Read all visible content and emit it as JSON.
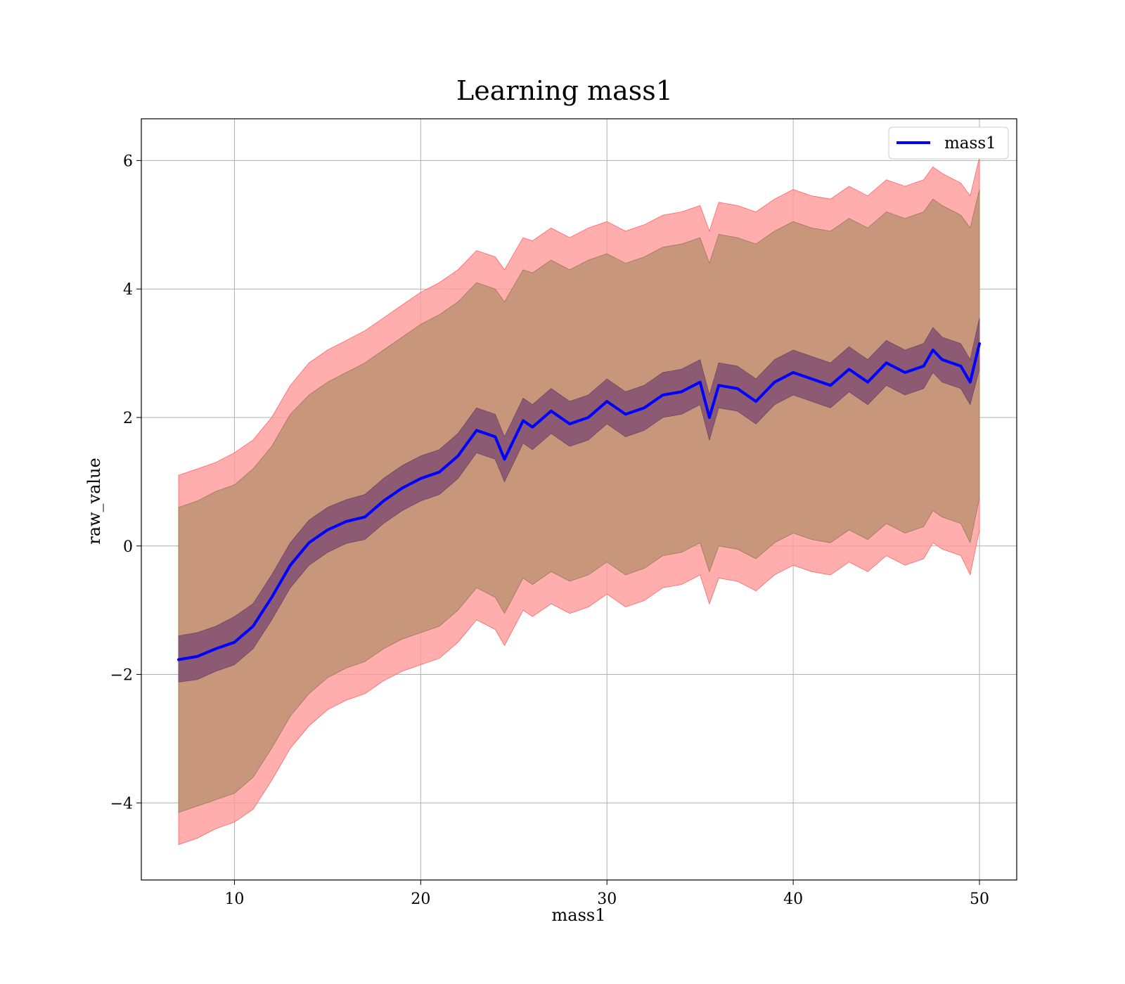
{
  "chart_data": {
    "type": "line",
    "title": "Learning mass1",
    "xlabel": "mass1",
    "ylabel": "raw_value",
    "xlim": [
      5,
      52
    ],
    "ylim": [
      -5.2,
      6.65
    ],
    "grid": true,
    "legend_position": "top-right",
    "x_ticks": [
      10,
      20,
      30,
      40,
      50
    ],
    "x_tick_labels": [
      "10",
      "20",
      "30",
      "40",
      "50"
    ],
    "y_ticks": [
      -4,
      -2,
      0,
      2,
      4,
      6
    ],
    "y_tick_labels": [
      "−4",
      "−2",
      "0",
      "2",
      "4",
      "6"
    ],
    "colors": {
      "line": "#0000ff",
      "outer_band": "#ff9999",
      "outer_band_edge": "#ff6666",
      "middle_band": "#c8967a",
      "inner_band": "#8c5a73"
    },
    "series": [
      {
        "name": "mass1",
        "x": [
          7.0,
          8.0,
          9.0,
          10.0,
          11.0,
          12.0,
          13.0,
          14.0,
          15.0,
          16.0,
          17.0,
          18.0,
          19.0,
          20.0,
          21.0,
          22.0,
          23.0,
          24.0,
          24.5,
          25.5,
          26.0,
          27.0,
          28.0,
          29.0,
          30.0,
          31.0,
          32.0,
          33.0,
          34.0,
          35.0,
          35.5,
          36.0,
          37.0,
          38.0,
          39.0,
          40.0,
          41.0,
          42.0,
          43.0,
          44.0,
          45.0,
          46.0,
          47.0,
          47.5,
          48.0,
          49.0,
          49.5,
          50.0
        ],
        "y": [
          -1.77,
          -1.72,
          -1.6,
          -1.5,
          -1.25,
          -0.8,
          -0.3,
          0.05,
          0.25,
          0.38,
          0.45,
          0.7,
          0.9,
          1.05,
          1.15,
          1.4,
          1.8,
          1.7,
          1.35,
          1.95,
          1.85,
          2.1,
          1.9,
          2.0,
          2.25,
          2.05,
          2.15,
          2.35,
          2.4,
          2.55,
          2.0,
          2.5,
          2.45,
          2.25,
          2.55,
          2.7,
          2.6,
          2.5,
          2.75,
          2.55,
          2.85,
          2.7,
          2.8,
          3.05,
          2.9,
          2.8,
          2.55,
          3.15
        ]
      }
    ],
    "bands": [
      {
        "role": "outer",
        "x": [
          7.0,
          8.0,
          9.0,
          10.0,
          11.0,
          12.0,
          13.0,
          14.0,
          15.0,
          16.0,
          17.0,
          18.0,
          19.0,
          20.0,
          21.0,
          22.0,
          23.0,
          24.0,
          24.5,
          25.5,
          26.0,
          27.0,
          28.0,
          29.0,
          30.0,
          31.0,
          32.0,
          33.0,
          34.0,
          35.0,
          35.5,
          36.0,
          37.0,
          38.0,
          39.0,
          40.0,
          41.0,
          42.0,
          43.0,
          44.0,
          45.0,
          46.0,
          47.0,
          47.5,
          48.0,
          49.0,
          49.5,
          50.0
        ],
        "upper": [
          1.1,
          1.2,
          1.3,
          1.45,
          1.65,
          2.0,
          2.5,
          2.85,
          3.05,
          3.2,
          3.35,
          3.55,
          3.75,
          3.95,
          4.1,
          4.3,
          4.6,
          4.5,
          4.3,
          4.8,
          4.75,
          4.95,
          4.8,
          4.95,
          5.05,
          4.9,
          5.0,
          5.15,
          5.2,
          5.3,
          4.9,
          5.35,
          5.3,
          5.2,
          5.4,
          5.55,
          5.45,
          5.4,
          5.6,
          5.45,
          5.7,
          5.6,
          5.7,
          5.9,
          5.8,
          5.65,
          5.45,
          6.05
        ],
        "lower": [
          -4.65,
          -4.55,
          -4.4,
          -4.3,
          -4.1,
          -3.65,
          -3.15,
          -2.8,
          -2.55,
          -2.4,
          -2.3,
          -2.1,
          -1.95,
          -1.85,
          -1.75,
          -1.5,
          -1.15,
          -1.3,
          -1.55,
          -1.0,
          -1.1,
          -0.9,
          -1.05,
          -0.95,
          -0.75,
          -0.95,
          -0.85,
          -0.65,
          -0.6,
          -0.45,
          -0.9,
          -0.5,
          -0.55,
          -0.7,
          -0.45,
          -0.3,
          -0.4,
          -0.45,
          -0.25,
          -0.4,
          -0.15,
          -0.3,
          -0.2,
          0.05,
          -0.05,
          -0.15,
          -0.45,
          0.25
        ]
      },
      {
        "role": "middle",
        "x": [
          7.0,
          8.0,
          9.0,
          10.0,
          11.0,
          12.0,
          13.0,
          14.0,
          15.0,
          16.0,
          17.0,
          18.0,
          19.0,
          20.0,
          21.0,
          22.0,
          23.0,
          24.0,
          24.5,
          25.5,
          26.0,
          27.0,
          28.0,
          29.0,
          30.0,
          31.0,
          32.0,
          33.0,
          34.0,
          35.0,
          35.5,
          36.0,
          37.0,
          38.0,
          39.0,
          40.0,
          41.0,
          42.0,
          43.0,
          44.0,
          45.0,
          46.0,
          47.0,
          47.5,
          48.0,
          49.0,
          49.5,
          50.0
        ],
        "upper": [
          0.6,
          0.7,
          0.85,
          0.95,
          1.2,
          1.55,
          2.05,
          2.35,
          2.55,
          2.7,
          2.85,
          3.05,
          3.25,
          3.45,
          3.6,
          3.8,
          4.1,
          4.0,
          3.8,
          4.3,
          4.25,
          4.45,
          4.3,
          4.45,
          4.55,
          4.4,
          4.5,
          4.65,
          4.7,
          4.8,
          4.4,
          4.85,
          4.8,
          4.7,
          4.9,
          5.05,
          4.95,
          4.9,
          5.1,
          4.95,
          5.2,
          5.1,
          5.2,
          5.4,
          5.3,
          5.15,
          4.95,
          5.55
        ],
        "lower": [
          -4.15,
          -4.05,
          -3.95,
          -3.85,
          -3.6,
          -3.15,
          -2.65,
          -2.3,
          -2.05,
          -1.9,
          -1.8,
          -1.6,
          -1.45,
          -1.35,
          -1.25,
          -1.0,
          -0.65,
          -0.8,
          -1.05,
          -0.5,
          -0.6,
          -0.4,
          -0.55,
          -0.45,
          -0.25,
          -0.45,
          -0.35,
          -0.15,
          -0.1,
          0.05,
          -0.4,
          0.0,
          -0.05,
          -0.2,
          0.05,
          0.2,
          0.1,
          0.05,
          0.25,
          0.1,
          0.35,
          0.2,
          0.3,
          0.55,
          0.45,
          0.35,
          0.05,
          0.75
        ]
      },
      {
        "role": "inner",
        "x": [
          7.0,
          8.0,
          9.0,
          10.0,
          11.0,
          12.0,
          13.0,
          14.0,
          15.0,
          16.0,
          17.0,
          18.0,
          19.0,
          20.0,
          21.0,
          22.0,
          23.0,
          24.0,
          24.5,
          25.5,
          26.0,
          27.0,
          28.0,
          29.0,
          30.0,
          31.0,
          32.0,
          33.0,
          34.0,
          35.0,
          35.5,
          36.0,
          37.0,
          38.0,
          39.0,
          40.0,
          41.0,
          42.0,
          43.0,
          44.0,
          45.0,
          46.0,
          47.0,
          47.5,
          48.0,
          49.0,
          49.5,
          50.0
        ],
        "upper": [
          -1.4,
          -1.35,
          -1.25,
          -1.1,
          -0.9,
          -0.45,
          0.05,
          0.4,
          0.6,
          0.72,
          0.8,
          1.05,
          1.25,
          1.4,
          1.5,
          1.75,
          2.15,
          2.05,
          1.7,
          2.3,
          2.2,
          2.45,
          2.25,
          2.35,
          2.6,
          2.4,
          2.5,
          2.7,
          2.75,
          2.9,
          2.35,
          2.85,
          2.8,
          2.6,
          2.9,
          3.05,
          2.95,
          2.85,
          3.1,
          2.9,
          3.2,
          3.05,
          3.15,
          3.4,
          3.25,
          3.15,
          2.9,
          3.55
        ],
        "lower": [
          -2.12,
          -2.08,
          -1.95,
          -1.85,
          -1.6,
          -1.15,
          -0.65,
          -0.3,
          -0.1,
          0.04,
          0.1,
          0.35,
          0.55,
          0.7,
          0.8,
          1.05,
          1.45,
          1.35,
          1.0,
          1.6,
          1.5,
          1.75,
          1.55,
          1.65,
          1.9,
          1.7,
          1.8,
          2.0,
          2.05,
          2.2,
          1.65,
          2.15,
          2.1,
          1.9,
          2.2,
          2.35,
          2.25,
          2.15,
          2.4,
          2.2,
          2.5,
          2.35,
          2.45,
          2.7,
          2.55,
          2.45,
          2.2,
          2.75
        ]
      }
    ]
  }
}
